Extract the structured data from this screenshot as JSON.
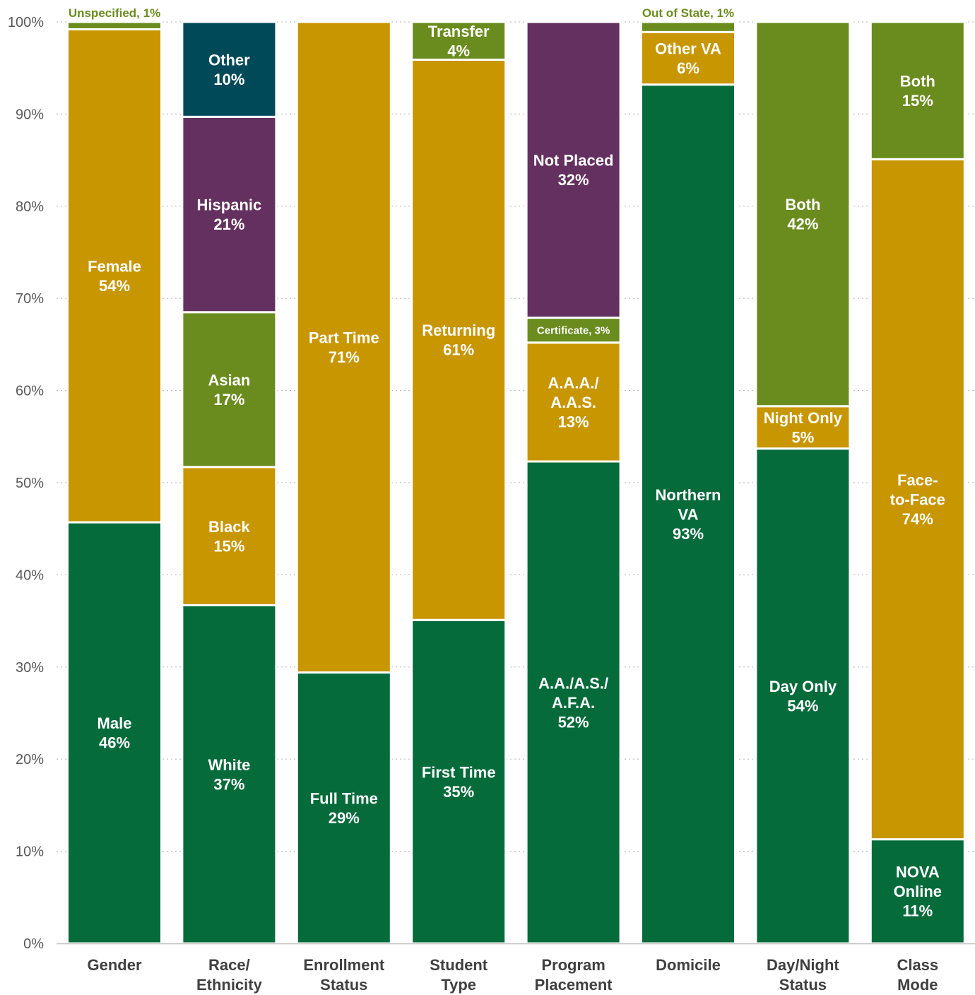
{
  "chart_data": {
    "type": "bar",
    "stacked": true,
    "normalized_percent": true,
    "ylim": [
      0,
      100
    ],
    "yticks": [
      "0%",
      "10%",
      "20%",
      "30%",
      "40%",
      "50%",
      "60%",
      "70%",
      "80%",
      "90%",
      "100%"
    ],
    "grid": "horizontal dotted",
    "colors": {
      "dark_green": "#066b3b",
      "gold": "#c89600",
      "olive": "#6a8c1e",
      "purple": "#64305f",
      "teal": "#004958",
      "axis_text": "#595959",
      "category_text": "#404040",
      "grid": "#bfbfbf"
    },
    "categories": [
      {
        "name": [
          "Gender"
        ],
        "segments": [
          {
            "label": [
              "Male",
              "46%"
            ],
            "value": 45.7,
            "color": "dark_green"
          },
          {
            "label": [
              "Female",
              "54%"
            ],
            "value": 53.5,
            "color": "gold"
          },
          {
            "label": [
              "Unspecified, 1%"
            ],
            "value": 0.8,
            "color": "olive",
            "outside": true
          }
        ]
      },
      {
        "name": [
          "Race/",
          "Ethnicity"
        ],
        "segments": [
          {
            "label": [
              "White",
              "37%"
            ],
            "value": 36.7,
            "color": "dark_green"
          },
          {
            "label": [
              "Black",
              "15%"
            ],
            "value": 15.0,
            "color": "gold"
          },
          {
            "label": [
              "Asian",
              "17%"
            ],
            "value": 16.8,
            "color": "olive"
          },
          {
            "label": [
              "Hispanic",
              "21%"
            ],
            "value": 21.2,
            "color": "purple"
          },
          {
            "label": [
              "Other",
              "10%"
            ],
            "value": 10.3,
            "color": "teal"
          }
        ]
      },
      {
        "name": [
          "Enrollment",
          "Status"
        ],
        "segments": [
          {
            "label": [
              "Full Time",
              "29%"
            ],
            "value": 29.4,
            "color": "dark_green"
          },
          {
            "label": [
              "Part Time",
              "71%"
            ],
            "value": 70.6,
            "color": "gold"
          }
        ]
      },
      {
        "name": [
          "Student",
          "Type"
        ],
        "segments": [
          {
            "label": [
              "First Time",
              "35%"
            ],
            "value": 35.1,
            "color": "dark_green"
          },
          {
            "label": [
              "Returning",
              "61%"
            ],
            "value": 60.8,
            "color": "gold"
          },
          {
            "label": [
              "Transfer",
              "4%"
            ],
            "value": 4.1,
            "color": "olive"
          }
        ]
      },
      {
        "name": [
          "Program",
          "Placement"
        ],
        "segments": [
          {
            "label": [
              "A.A./A.S./",
              "A.F.A.",
              "52%"
            ],
            "value": 52.3,
            "color": "dark_green"
          },
          {
            "label": [
              "A.A.A./",
              "A.A.S.",
              "13%"
            ],
            "value": 12.9,
            "color": "gold"
          },
          {
            "label": [
              "Certificate, 3%"
            ],
            "value": 2.7,
            "color": "olive",
            "small": true
          },
          {
            "label": [
              "Not Placed",
              "32%"
            ],
            "value": 32.1,
            "color": "purple"
          }
        ]
      },
      {
        "name": [
          "Domicile"
        ],
        "segments": [
          {
            "label": [
              "Northern",
              "VA",
              "93%"
            ],
            "value": 93.2,
            "color": "dark_green"
          },
          {
            "label": [
              "Other VA",
              "6%"
            ],
            "value": 5.7,
            "color": "gold"
          },
          {
            "label": [
              "Out of State, 1%"
            ],
            "value": 1.1,
            "color": "olive",
            "outside": true
          }
        ]
      },
      {
        "name": [
          "Day/Night",
          "Status"
        ],
        "segments": [
          {
            "label": [
              "Day Only",
              "54%"
            ],
            "value": 53.7,
            "color": "dark_green"
          },
          {
            "label": [
              "Night Only",
              "5%"
            ],
            "value": 4.6,
            "color": "gold"
          },
          {
            "label": [
              "Both",
              "42%"
            ],
            "value": 41.7,
            "color": "olive"
          }
        ]
      },
      {
        "name": [
          "Class",
          "Mode"
        ],
        "segments": [
          {
            "label": [
              "NOVA",
              "Online",
              "11%"
            ],
            "value": 11.3,
            "color": "dark_green"
          },
          {
            "label": [
              "Face-",
              "to-Face",
              "74%"
            ],
            "value": 73.8,
            "color": "gold"
          },
          {
            "label": [
              "Both",
              "15%"
            ],
            "value": 14.9,
            "color": "olive"
          }
        ]
      }
    ]
  }
}
